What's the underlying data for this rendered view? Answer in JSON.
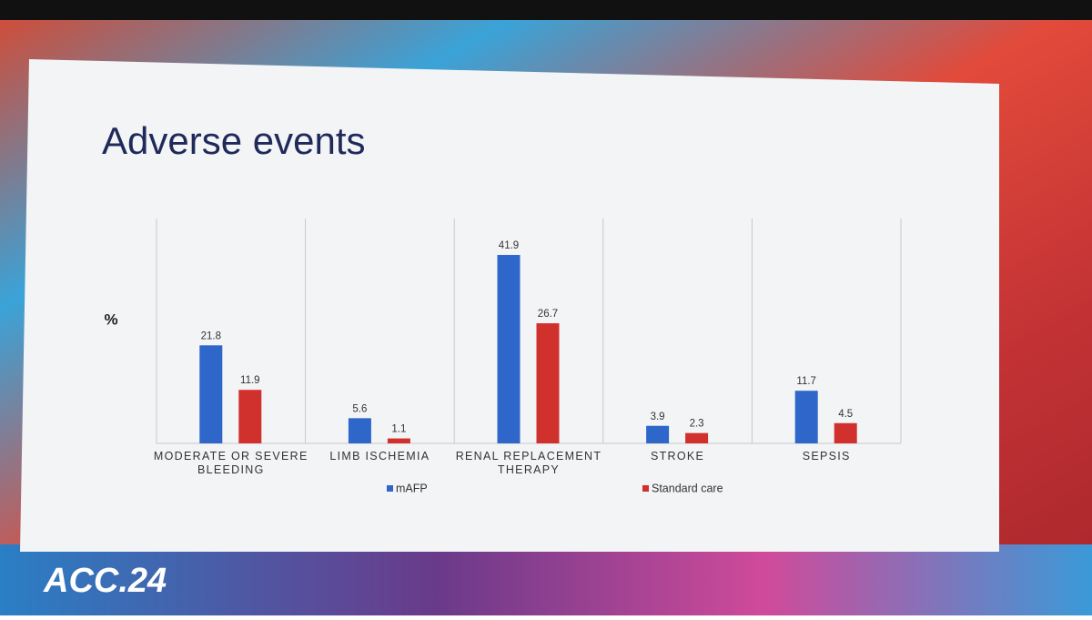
{
  "event_logo": "ACC.24",
  "chart_data": {
    "type": "bar",
    "title": "Adverse events",
    "y_label": "%",
    "categories": [
      "MODERATE OR SEVERE BLEEDING",
      "LIMB ISCHEMIA",
      "RENAL REPLACEMENT THERAPY",
      "STROKE",
      "SEPSIS"
    ],
    "series": [
      {
        "name": "mAFP",
        "color": "#2f66c9",
        "values": [
          21.8,
          5.6,
          41.9,
          3.9,
          11.7
        ]
      },
      {
        "name": "Standard care",
        "color": "#d0312d",
        "values": [
          11.9,
          1.1,
          26.7,
          2.3,
          4.5
        ]
      }
    ],
    "ylim": [
      0,
      50
    ],
    "grid": false
  }
}
